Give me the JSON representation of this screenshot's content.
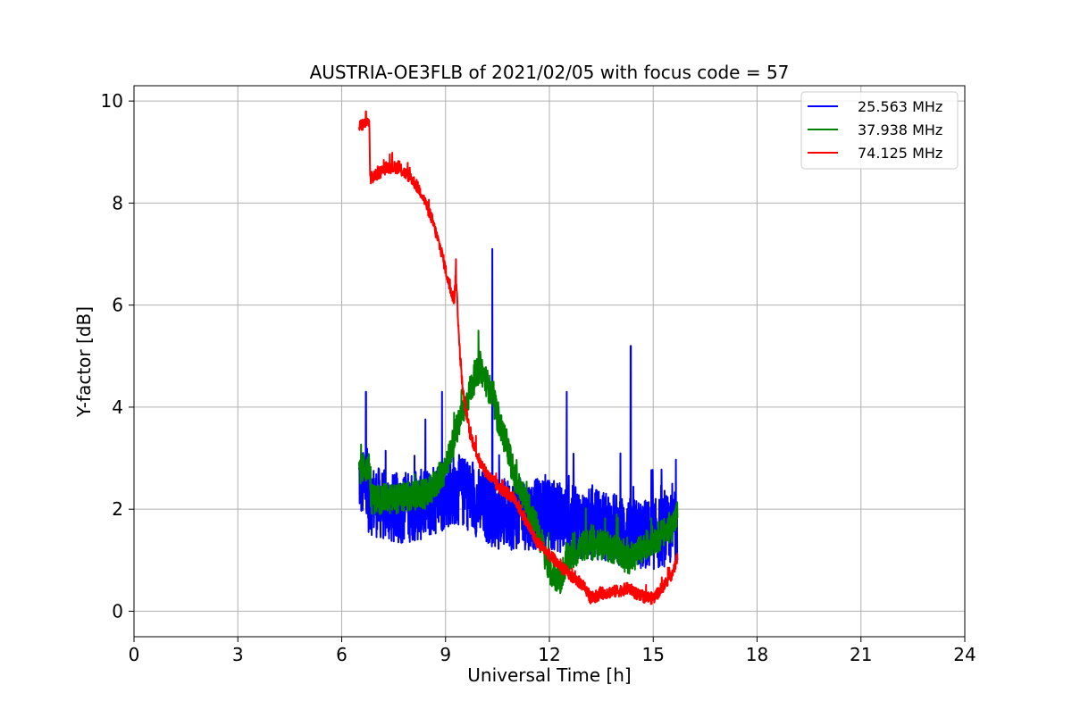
{
  "chart_data": {
    "type": "line",
    "title": "AUSTRIA-OE3FLB of 2021/02/05 with focus code = 57",
    "xlabel": "Universal Time [h]",
    "ylabel": "Y-factor [dB]",
    "xlim": [
      0,
      24
    ],
    "ylim": [
      -0.5,
      10.3
    ],
    "xticks": [
      0,
      3,
      6,
      9,
      12,
      15,
      18,
      21,
      24
    ],
    "xtick_labels": [
      "0",
      "3",
      "6",
      "9",
      "12",
      "15",
      "18",
      "21",
      "24"
    ],
    "yticks": [
      0,
      2,
      4,
      6,
      8,
      10
    ],
    "ytick_labels": [
      "0",
      "2",
      "4",
      "6",
      "8",
      "10"
    ],
    "grid": true,
    "legend_position": "top-right",
    "series": [
      {
        "name": "25.563 MHz",
        "color": "#0000ff",
        "noise": 0.7,
        "x": [
          6.5,
          6.8,
          7.5,
          8.5,
          9.0,
          9.3,
          9.6,
          10.0,
          10.5,
          11.0,
          11.5,
          12.0,
          12.5,
          13.0,
          13.5,
          14.0,
          14.5,
          15.0,
          15.5,
          15.7
        ],
        "y": [
          2.6,
          2.2,
          2.0,
          2.1,
          2.3,
          2.4,
          2.3,
          2.1,
          1.9,
          1.9,
          1.9,
          1.9,
          1.8,
          1.7,
          1.7,
          1.6,
          1.5,
          1.5,
          1.6,
          1.7
        ],
        "spikes": [
          [
            6.7,
            4.3
          ],
          [
            8.9,
            4.3
          ],
          [
            10.35,
            7.1
          ],
          [
            12.5,
            4.3
          ],
          [
            14.35,
            5.2
          ],
          [
            15.55,
            2.5
          ]
        ]
      },
      {
        "name": "37.938 MHz",
        "color": "#008000",
        "noise": 0.3,
        "x": [
          6.5,
          6.8,
          6.85,
          7.5,
          8.5,
          9.0,
          9.3,
          9.5,
          9.8,
          10.0,
          10.3,
          10.5,
          10.8,
          11.0,
          11.5,
          11.8,
          12.0,
          12.3,
          12.5,
          13.0,
          13.5,
          14.0,
          14.2,
          14.5,
          15.0,
          15.5,
          15.7
        ],
        "y": [
          2.8,
          2.8,
          2.2,
          2.2,
          2.3,
          2.8,
          3.5,
          3.9,
          4.5,
          4.8,
          4.3,
          3.8,
          3.2,
          2.6,
          1.9,
          1.3,
          0.8,
          0.6,
          1.0,
          1.3,
          1.3,
          1.2,
          1.0,
          1.1,
          1.4,
          1.6,
          1.9
        ],
        "spikes": [
          [
            9.95,
            5.5
          ],
          [
            10.35,
            4.5
          ]
        ]
      },
      {
        "name": "74.125 MHz",
        "color": "#ff0000",
        "noise": 0.12,
        "x": [
          6.5,
          6.8,
          6.82,
          6.9,
          7.3,
          7.6,
          8.0,
          8.3,
          8.6,
          8.9,
          9.1,
          9.25,
          9.3,
          9.4,
          9.5,
          9.7,
          10.0,
          10.3,
          10.6,
          11.0,
          11.3,
          11.6,
          12.0,
          12.3,
          12.6,
          13.0,
          13.2,
          13.5,
          14.0,
          14.3,
          14.6,
          15.0,
          15.3,
          15.6,
          15.7
        ],
        "y": [
          9.5,
          9.6,
          8.5,
          8.5,
          8.7,
          8.7,
          8.5,
          8.2,
          7.7,
          7.0,
          6.4,
          6.1,
          6.6,
          5.2,
          4.3,
          3.5,
          2.9,
          2.6,
          2.4,
          2.2,
          1.8,
          1.4,
          1.1,
          0.9,
          0.7,
          0.5,
          0.25,
          0.35,
          0.4,
          0.45,
          0.3,
          0.25,
          0.5,
          0.8,
          1.1
        ],
        "spikes": [
          [
            6.7,
            9.8
          ],
          [
            9.3,
            6.9
          ]
        ]
      }
    ]
  }
}
